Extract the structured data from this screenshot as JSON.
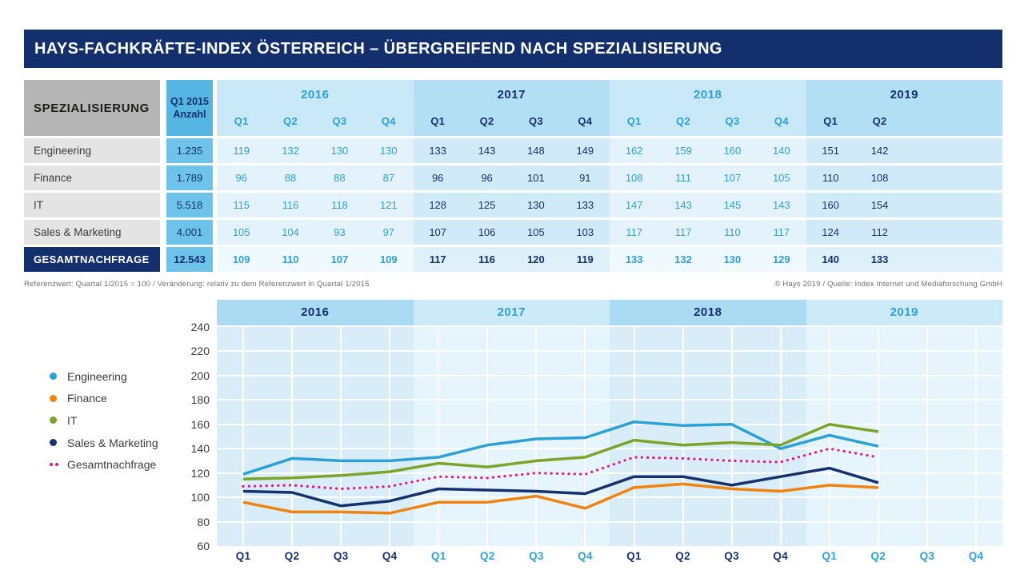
{
  "header": {
    "title": "HAYS-FACHKRÄFTE-INDEX ÖSTERREICH – ÜBERGREIFEND NACH SPEZIALISIERUNG"
  },
  "colors": {
    "navy": "#142f6e",
    "blue": "#2da0d8",
    "orange": "#f0820f",
    "green": "#7ba428",
    "pink": "#e81382",
    "title_bg": "#142f6e",
    "spez_header_bg": "#b5b5b5",
    "row_label_bg": "#e4e4e4",
    "anzahl_header_bg": "#55b6e3",
    "anzahl_cell_bg": "#6dc3e9",
    "year_bg_light": "#c9e8f8",
    "year_bg_dark": "#b3dff4",
    "cell_bg_light": "#e4f3fb",
    "cell_bg_dark": "#d0eaf7",
    "chart_band_dark": "#abdbf2",
    "chart_band_light": "#cdeaf8",
    "plot_bg_dark": "#d8edf8",
    "plot_bg_light": "#e6f4fb"
  },
  "table": {
    "spez_header": "SPEZIALISIERUNG",
    "anzahl_header_line1": "Q1 2015",
    "anzahl_header_line2": "Anzahl",
    "years": [
      {
        "label": "2016",
        "quarters": [
          "Q1",
          "Q2",
          "Q3",
          "Q4"
        ],
        "variant": "light"
      },
      {
        "label": "2017",
        "quarters": [
          "Q1",
          "Q2",
          "Q3",
          "Q4"
        ],
        "variant": "dark"
      },
      {
        "label": "2018",
        "quarters": [
          "Q1",
          "Q2",
          "Q3",
          "Q4"
        ],
        "variant": "light"
      },
      {
        "label": "2019",
        "quarters": [
          "Q1",
          "Q2"
        ],
        "variant": "dark"
      }
    ],
    "rows": [
      {
        "label": "Engineering",
        "anzahl": "1.235",
        "total": false,
        "values": [
          [
            119,
            132,
            130,
            130
          ],
          [
            133,
            143,
            148,
            149
          ],
          [
            162,
            159,
            160,
            140
          ],
          [
            151,
            142
          ]
        ]
      },
      {
        "label": "Finance",
        "anzahl": "1.789",
        "total": false,
        "values": [
          [
            96,
            88,
            88,
            87
          ],
          [
            96,
            96,
            101,
            91
          ],
          [
            108,
            111,
            107,
            105
          ],
          [
            110,
            108
          ]
        ]
      },
      {
        "label": "IT",
        "anzahl": "5.518",
        "total": false,
        "values": [
          [
            115,
            116,
            118,
            121
          ],
          [
            128,
            125,
            130,
            133
          ],
          [
            147,
            143,
            145,
            143
          ],
          [
            160,
            154
          ]
        ]
      },
      {
        "label": "Sales & Marketing",
        "anzahl": "4.001",
        "total": false,
        "values": [
          [
            105,
            104,
            93,
            97
          ],
          [
            107,
            106,
            105,
            103
          ],
          [
            117,
            117,
            110,
            117
          ],
          [
            124,
            112
          ]
        ]
      },
      {
        "label": "GESAMTNACHFRAGE",
        "anzahl": "12.543",
        "total": true,
        "values": [
          [
            109,
            110,
            107,
            109
          ],
          [
            117,
            116,
            120,
            119
          ],
          [
            133,
            132,
            130,
            129
          ],
          [
            140,
            133
          ]
        ]
      }
    ]
  },
  "footnotes": {
    "left": "Referenzwert: Quartal 1/2015 = 100 / Veränderung: relativ zu dem Referenzwert in Quartal 1/2015",
    "right": "© Hays 2019 / Quelle: Index Internet und Mediaforschung GmbH"
  },
  "chart_data": {
    "type": "line",
    "title": "",
    "xlabel": "",
    "ylabel": "",
    "ylim": [
      60,
      240
    ],
    "ytick_step": 20,
    "grid": true,
    "legend_position": "left",
    "year_bands": [
      {
        "label": "2016",
        "variant": "dark"
      },
      {
        "label": "2017",
        "variant": "light"
      },
      {
        "label": "2018",
        "variant": "dark"
      },
      {
        "label": "2019",
        "variant": "light"
      }
    ],
    "quarters_per_year": [
      "Q1",
      "Q2",
      "Q3",
      "Q4"
    ],
    "x": [
      "Q1 2016",
      "Q2 2016",
      "Q3 2016",
      "Q4 2016",
      "Q1 2017",
      "Q2 2017",
      "Q3 2017",
      "Q4 2017",
      "Q1 2018",
      "Q2 2018",
      "Q3 2018",
      "Q4 2018",
      "Q1 2019",
      "Q2 2019"
    ],
    "series": [
      {
        "name": "Engineering",
        "color": "#2da0d8",
        "line_style": "solid",
        "values": [
          119,
          132,
          130,
          130,
          133,
          143,
          148,
          149,
          162,
          159,
          160,
          140,
          151,
          142
        ]
      },
      {
        "name": "Finance",
        "color": "#f0820f",
        "line_style": "solid",
        "values": [
          96,
          88,
          88,
          87,
          96,
          96,
          101,
          91,
          108,
          111,
          107,
          105,
          110,
          108
        ]
      },
      {
        "name": "IT",
        "color": "#7ba428",
        "line_style": "solid",
        "values": [
          115,
          116,
          118,
          121,
          128,
          125,
          130,
          133,
          147,
          143,
          145,
          143,
          160,
          154
        ]
      },
      {
        "name": "Sales & Marketing",
        "color": "#15316e",
        "line_style": "solid",
        "values": [
          105,
          104,
          93,
          97,
          107,
          106,
          105,
          103,
          117,
          117,
          110,
          117,
          124,
          112
        ]
      },
      {
        "name": "Gesamtnachfrage",
        "color": "#e81382",
        "line_style": "dotted",
        "values": [
          109,
          110,
          107,
          109,
          117,
          116,
          120,
          119,
          133,
          132,
          130,
          129,
          140,
          133
        ]
      }
    ]
  }
}
